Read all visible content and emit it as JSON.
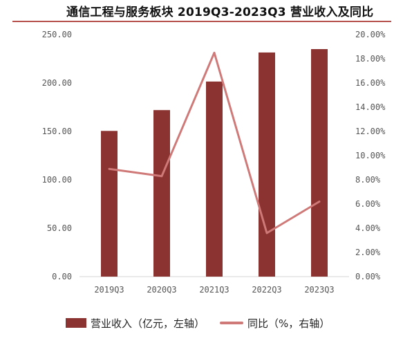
{
  "colors": {
    "bar": "#8a3330",
    "line": "#cf7a78",
    "title_rule": "#b5504d",
    "axis": "#d6d6d6"
  },
  "chart_data": {
    "type": "bar",
    "title": "通信工程与服务板块 2019Q3-2023Q3 营业收入及同比",
    "categories": [
      "2019Q3",
      "2020Q3",
      "2021Q3",
      "2022Q3",
      "2023Q3"
    ],
    "y_left": {
      "ylim": [
        0,
        250
      ],
      "ticks": [
        "0.00",
        "50.00",
        "100.00",
        "150.00",
        "200.00",
        "250.00"
      ]
    },
    "y_right": {
      "ylim": [
        0,
        20
      ],
      "ticks": [
        "0.00%",
        "2.00%",
        "4.00%",
        "6.00%",
        "8.00%",
        "10.00%",
        "12.00%",
        "14.00%",
        "16.00%",
        "18.00%",
        "20.00%"
      ]
    },
    "series": [
      {
        "name": "营业收入（亿元，左轴）",
        "type": "bar",
        "axis": "left",
        "values": [
          150.5,
          172.0,
          201.5,
          231.5,
          235.0
        ]
      },
      {
        "name": "同比（%，右轴）",
        "type": "line",
        "axis": "right",
        "values": [
          8.9,
          8.3,
          18.5,
          3.6,
          6.2
        ]
      }
    ],
    "grid": false,
    "legend_position": "bottom"
  }
}
